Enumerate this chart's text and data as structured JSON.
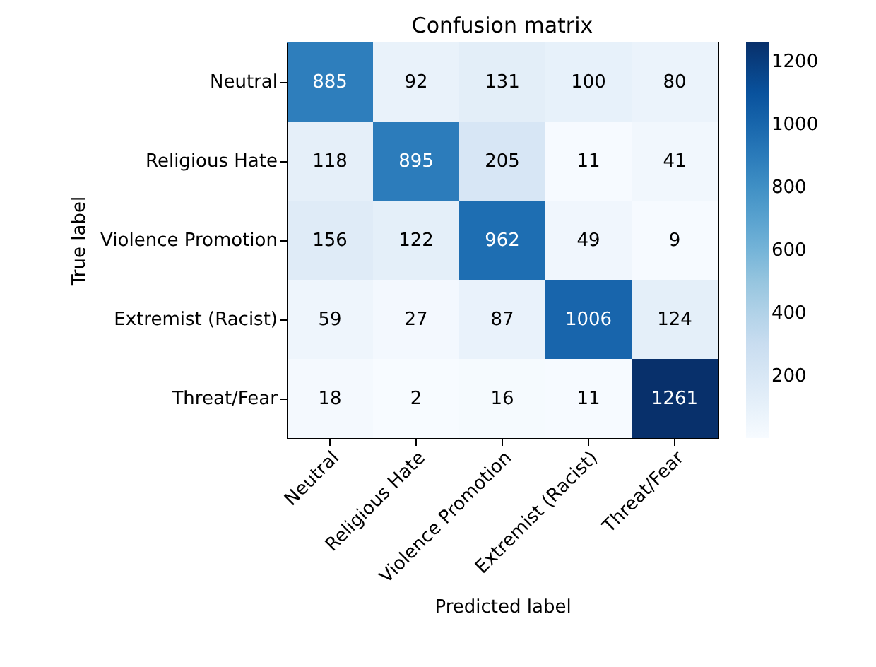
{
  "chart_data": {
    "type": "heatmap",
    "title": "Confusion matrix",
    "xlabel": "Predicted label",
    "ylabel": "True label",
    "categories": [
      "Neutral",
      "Religious Hate",
      "Violence Promotion",
      "Extremist (Racist)",
      "Threat/Fear"
    ],
    "y_categories": [
      "Neutral",
      "Religious Hate",
      "Violence Promotion",
      "Extremist (Racist)",
      "Threat/Fear"
    ],
    "cells": [
      [
        885,
        92,
        131,
        100,
        80
      ],
      [
        118,
        895,
        205,
        11,
        41
      ],
      [
        156,
        122,
        962,
        49,
        9
      ],
      [
        59,
        27,
        87,
        1006,
        124
      ],
      [
        18,
        2,
        16,
        11,
        1261
      ]
    ],
    "clim": [
      2,
      1261
    ],
    "cticks": [
      200,
      400,
      600,
      800,
      1000,
      1200
    ],
    "data_labels": true
  }
}
